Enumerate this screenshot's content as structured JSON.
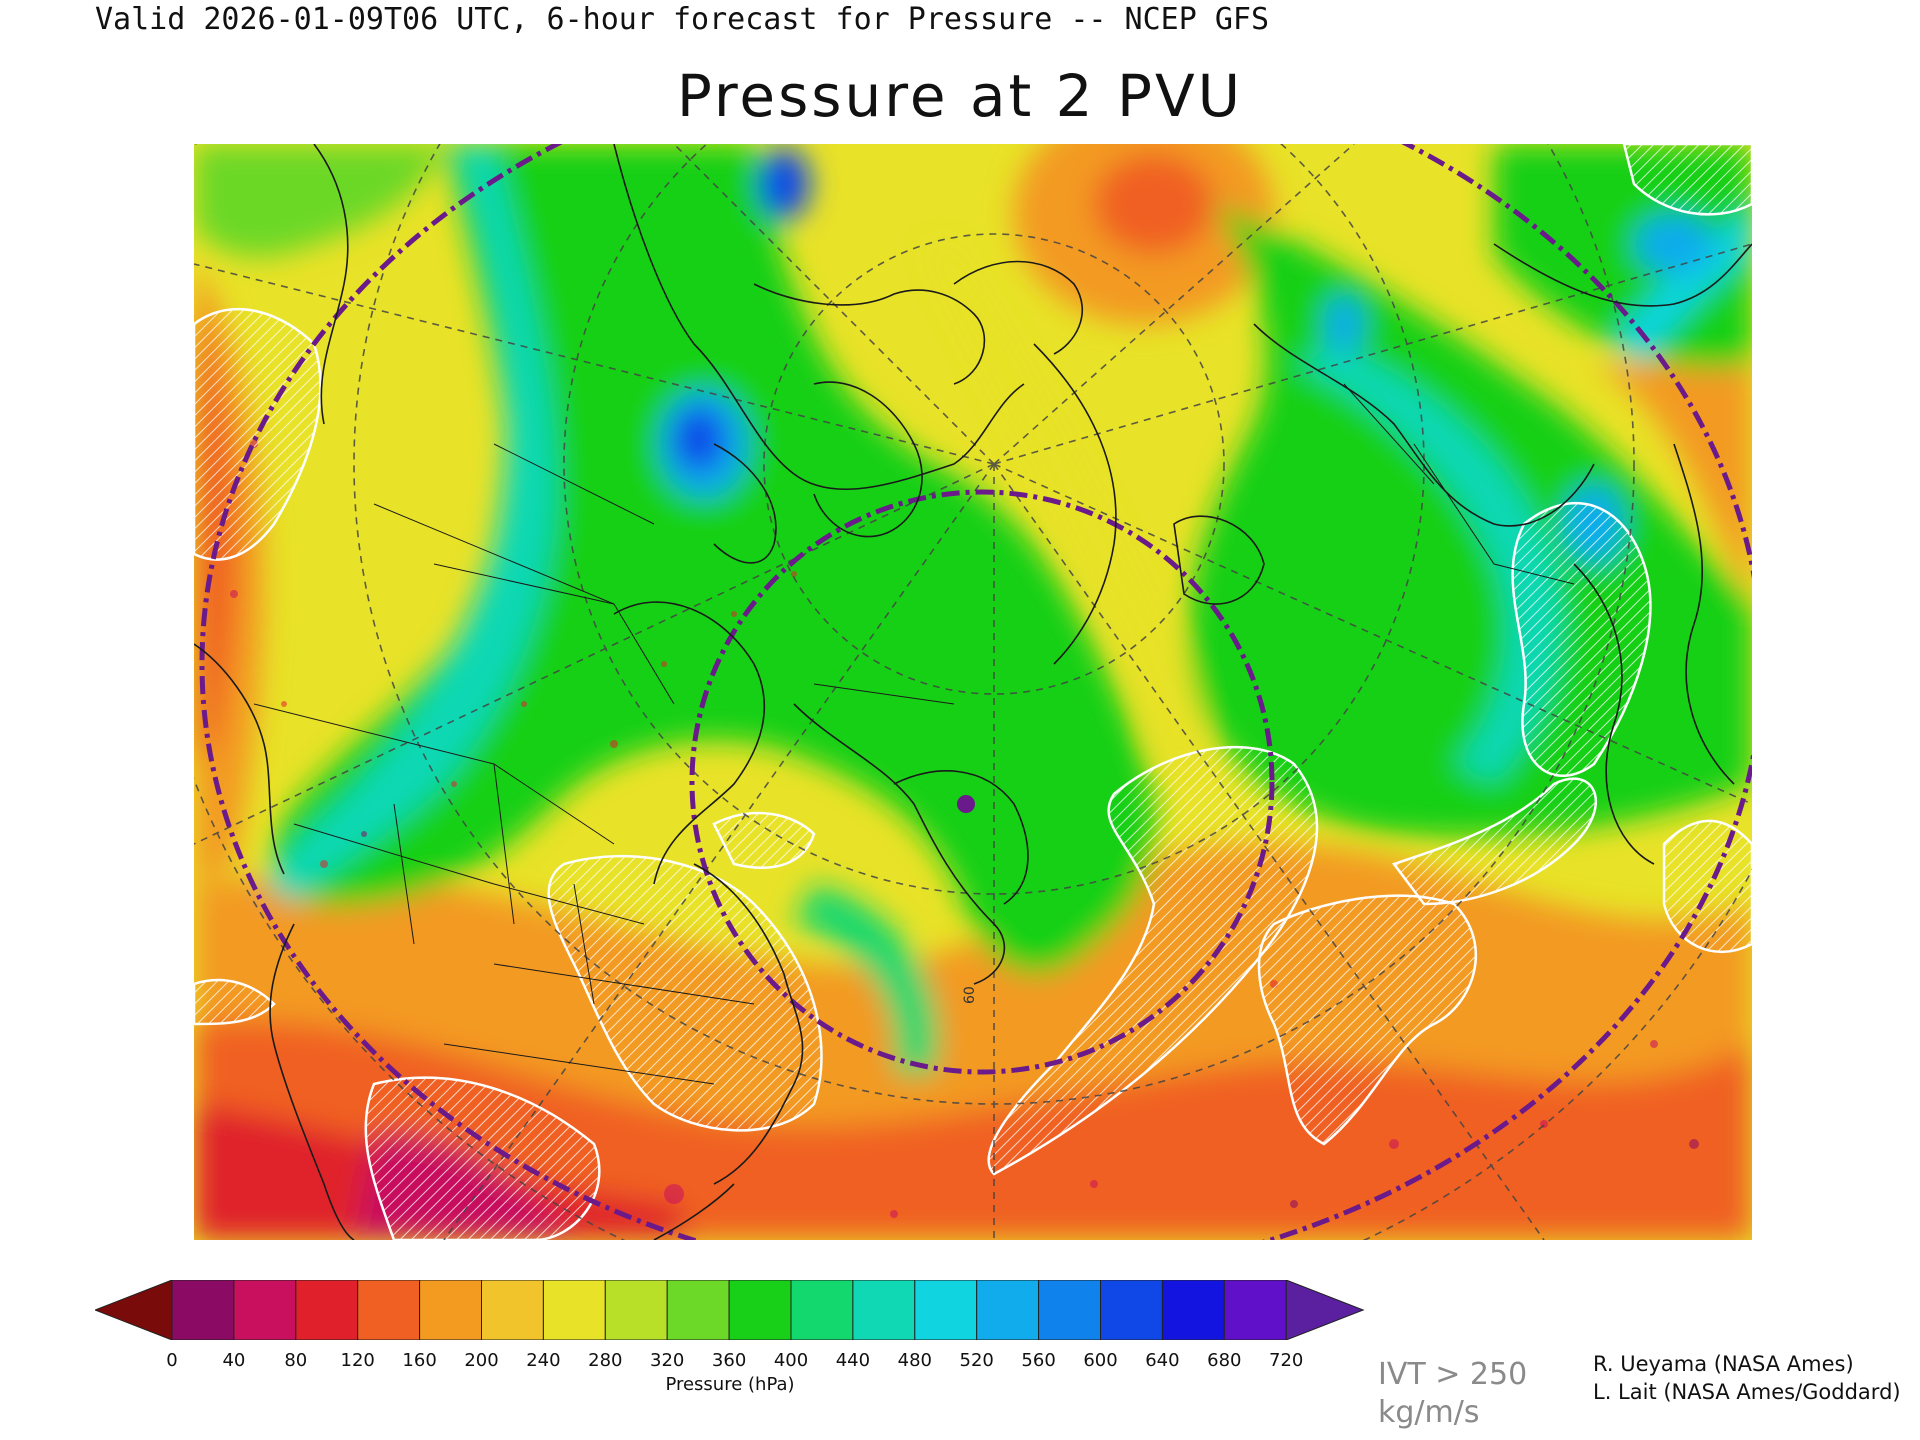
{
  "header": {
    "valid_line": "Valid 2026-01-09T06 UTC, 6-hour forecast for Pressure -- NCEP GFS",
    "title": "Pressure at 2 PVU"
  },
  "map": {
    "projection": "polar stereographic, North Atlantic / North America",
    "overlay": "white hatched regions = IVT > 250 kg/m/s",
    "contour_label": "60"
  },
  "colorbar": {
    "title": "Pressure (hPa)",
    "ticks": [
      "0",
      "40",
      "80",
      "120",
      "160",
      "200",
      "240",
      "280",
      "320",
      "360",
      "400",
      "440",
      "480",
      "520",
      "560",
      "600",
      "640",
      "680",
      "720"
    ],
    "colors": [
      "#7a0b0b",
      "#8b0a64",
      "#c8105e",
      "#e0202a",
      "#f06022",
      "#f39a20",
      "#f0c42a",
      "#e8e228",
      "#b8e028",
      "#6cd828",
      "#18d018",
      "#12d86e",
      "#10d8b4",
      "#10d4e0",
      "#10acec",
      "#1082ec",
      "#1048e8",
      "#1414e0",
      "#6010c8",
      "#5a20a0"
    ]
  },
  "legend": {
    "ivt_label": "IVT > 250\nkg/m/s"
  },
  "credits": {
    "line1": "R. Ueyama (NASA Ames)",
    "line2": "L. Lait (NASA Ames/Goddard)"
  }
}
